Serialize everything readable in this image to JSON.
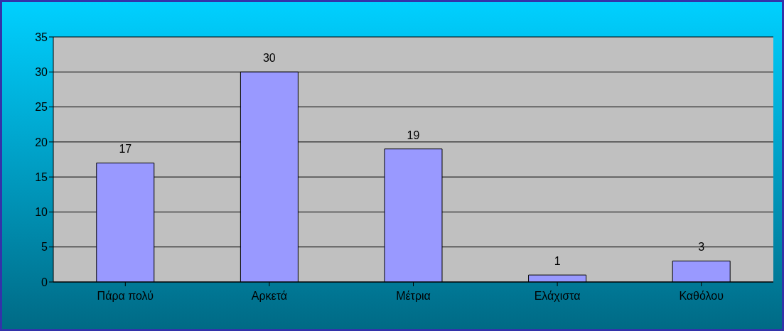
{
  "chart_data": {
    "type": "bar",
    "categories": [
      "Πάρα πολύ",
      "Αρκετά",
      "Μέτρια",
      "Ελάχιστα",
      "Καθόλου"
    ],
    "values": [
      17,
      30,
      19,
      1,
      3
    ],
    "color": "#9999ff",
    "ylim": [
      0,
      35
    ],
    "yticks": [
      0,
      5,
      10,
      15,
      20,
      25,
      30,
      35
    ],
    "grid": "y",
    "data_labels": true,
    "legend": false
  }
}
